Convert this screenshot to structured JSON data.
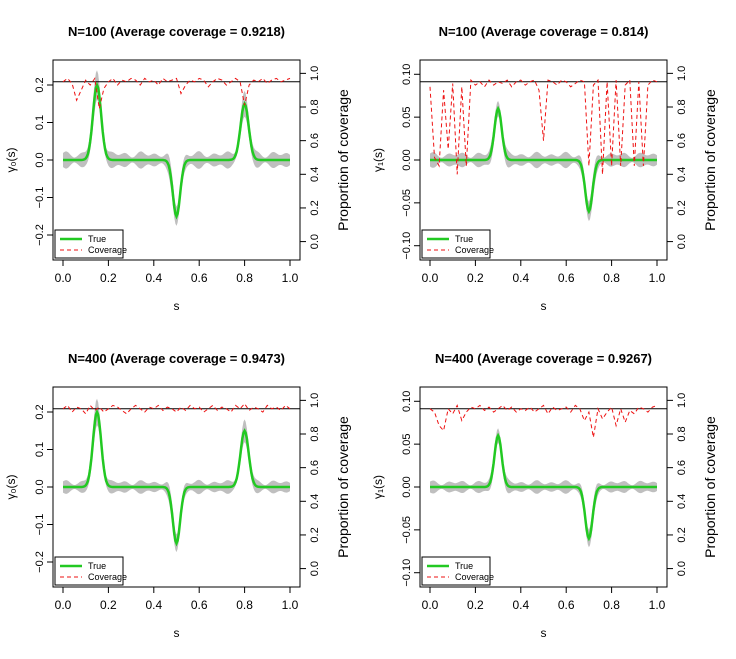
{
  "colors": {
    "true_line": "#22c922",
    "coverage_line": "#ee1111",
    "band": "#bfbfbf",
    "nominal_line": "#000000"
  },
  "chart_data": [
    {
      "type": "line",
      "title": "N=100 (Average coverage = 0.9218)",
      "xlabel": "s",
      "ylabel_left": "γ₀(s)",
      "ylabel_right": "Proportion of coverage",
      "xlim": [
        0,
        1
      ],
      "ylim_left": [
        -0.24,
        0.24
      ],
      "ylim_right": [
        -0.05,
        1.02
      ],
      "x_ticks": [
        "0.0",
        "0.2",
        "0.4",
        "0.6",
        "0.8",
        "1.0"
      ],
      "y_left_ticks": [
        "−0.2",
        "−0.1",
        "0.0",
        "0.1",
        "0.2"
      ],
      "y_right_ticks": [
        "0.0",
        "0.2",
        "0.4",
        "0.6",
        "0.8",
        "1.0"
      ],
      "legend_position": "bottom-left",
      "legend": [
        "True",
        "Coverage"
      ],
      "nominal_coverage": 0.95,
      "true_function": {
        "baseline": 0.0,
        "bumps": [
          {
            "center": 0.15,
            "height": 0.2,
            "width": 0.018
          },
          {
            "center": 0.5,
            "height": -0.15,
            "width": 0.016
          },
          {
            "center": 0.8,
            "height": 0.15,
            "width": 0.018
          }
        ]
      },
      "band_halfwidth": 0.015,
      "coverage": {
        "x": [
          0.0,
          0.02,
          0.04,
          0.06,
          0.08,
          0.1,
          0.12,
          0.14,
          0.16,
          0.18,
          0.2,
          0.22,
          0.24,
          0.26,
          0.28,
          0.3,
          0.32,
          0.34,
          0.36,
          0.38,
          0.4,
          0.42,
          0.44,
          0.46,
          0.48,
          0.5,
          0.52,
          0.54,
          0.56,
          0.58,
          0.6,
          0.62,
          0.64,
          0.66,
          0.68,
          0.7,
          0.72,
          0.74,
          0.76,
          0.78,
          0.8,
          0.82,
          0.84,
          0.86,
          0.88,
          0.9,
          0.92,
          0.94,
          0.96,
          0.98,
          1.0
        ],
        "y": [
          0.95,
          0.97,
          0.94,
          0.84,
          0.9,
          0.96,
          0.93,
          0.97,
          0.79,
          0.91,
          0.95,
          0.97,
          0.93,
          0.96,
          0.95,
          0.97,
          0.96,
          0.93,
          0.97,
          0.95,
          0.96,
          0.93,
          0.97,
          0.95,
          0.96,
          0.97,
          0.88,
          0.93,
          0.96,
          0.95,
          0.97,
          0.96,
          0.92,
          0.95,
          0.97,
          0.96,
          0.93,
          0.95,
          0.97,
          0.95,
          0.81,
          0.93,
          0.96,
          0.95,
          0.97,
          0.94,
          0.96,
          0.97,
          0.95,
          0.96,
          0.97
        ]
      }
    },
    {
      "type": "line",
      "title": "N=100 (Average coverage = 0.814)",
      "xlabel": "s",
      "ylabel_left": "γ₁(s)",
      "ylabel_right": "Proportion of coverage",
      "xlim": [
        0,
        1
      ],
      "ylim_left": [
        -0.105,
        0.105
      ],
      "ylim_right": [
        -0.05,
        1.02
      ],
      "x_ticks": [
        "0.0",
        "0.2",
        "0.4",
        "0.6",
        "0.8",
        "1.0"
      ],
      "y_left_ticks": [
        "−0.10",
        "−0.05",
        "0.00",
        "0.05",
        "0.10"
      ],
      "y_right_ticks": [
        "0.0",
        "0.2",
        "0.4",
        "0.6",
        "0.8",
        "1.0"
      ],
      "legend_position": "bottom-left",
      "legend": [
        "True",
        "Coverage"
      ],
      "nominal_coverage": 0.95,
      "true_function": {
        "baseline": 0.0,
        "bumps": [
          {
            "center": 0.3,
            "height": 0.06,
            "width": 0.016
          },
          {
            "center": 0.7,
            "height": -0.06,
            "width": 0.016
          }
        ]
      },
      "band_halfwidth": 0.006,
      "coverage": {
        "x": [
          0.0,
          0.02,
          0.04,
          0.06,
          0.08,
          0.1,
          0.12,
          0.14,
          0.16,
          0.18,
          0.2,
          0.22,
          0.24,
          0.26,
          0.28,
          0.3,
          0.32,
          0.34,
          0.36,
          0.38,
          0.4,
          0.42,
          0.44,
          0.46,
          0.48,
          0.5,
          0.52,
          0.54,
          0.56,
          0.58,
          0.6,
          0.62,
          0.64,
          0.66,
          0.68,
          0.7,
          0.72,
          0.74,
          0.76,
          0.78,
          0.8,
          0.82,
          0.84,
          0.86,
          0.88,
          0.9,
          0.92,
          0.94,
          0.96,
          0.98,
          1.0
        ],
        "y": [
          0.92,
          0.5,
          0.45,
          0.9,
          0.55,
          0.94,
          0.4,
          0.92,
          0.45,
          0.96,
          0.93,
          0.95,
          0.92,
          0.96,
          0.93,
          0.95,
          0.94,
          0.96,
          0.92,
          0.95,
          0.96,
          0.93,
          0.95,
          0.96,
          0.9,
          0.6,
          0.96,
          0.95,
          0.93,
          0.96,
          0.95,
          0.92,
          0.94,
          0.96,
          0.95,
          0.45,
          0.93,
          0.96,
          0.4,
          0.95,
          0.45,
          0.96,
          0.45,
          0.93,
          0.96,
          0.45,
          0.95,
          0.45,
          0.93,
          0.96,
          0.95
        ]
      }
    },
    {
      "type": "line",
      "title": "N=400 (Average coverage = 0.9473)",
      "xlabel": "s",
      "ylabel_left": "γ₀(s)",
      "ylabel_right": "Proportion of coverage",
      "xlim": [
        0,
        1
      ],
      "ylim_left": [
        -0.24,
        0.24
      ],
      "ylim_right": [
        -0.05,
        1.02
      ],
      "x_ticks": [
        "0.0",
        "0.2",
        "0.4",
        "0.6",
        "0.8",
        "1.0"
      ],
      "y_left_ticks": [
        "−0.2",
        "−0.1",
        "0.0",
        "0.1",
        "0.2"
      ],
      "y_right_ticks": [
        "0.0",
        "0.2",
        "0.4",
        "0.6",
        "0.8",
        "1.0"
      ],
      "legend_position": "bottom-left",
      "legend": [
        "True",
        "Coverage"
      ],
      "nominal_coverage": 0.95,
      "true_function": {
        "baseline": 0.0,
        "bumps": [
          {
            "center": 0.15,
            "height": 0.2,
            "width": 0.018
          },
          {
            "center": 0.5,
            "height": -0.15,
            "width": 0.016
          },
          {
            "center": 0.8,
            "height": 0.15,
            "width": 0.018
          }
        ]
      },
      "band_halfwidth": 0.012,
      "coverage": {
        "x": [
          0.0,
          0.02,
          0.04,
          0.06,
          0.08,
          0.1,
          0.12,
          0.14,
          0.16,
          0.18,
          0.2,
          0.22,
          0.24,
          0.26,
          0.28,
          0.3,
          0.32,
          0.34,
          0.36,
          0.38,
          0.4,
          0.42,
          0.44,
          0.46,
          0.48,
          0.5,
          0.52,
          0.54,
          0.56,
          0.58,
          0.6,
          0.62,
          0.64,
          0.66,
          0.68,
          0.7,
          0.72,
          0.74,
          0.76,
          0.78,
          0.8,
          0.82,
          0.84,
          0.86,
          0.88,
          0.9,
          0.92,
          0.94,
          0.96,
          0.98,
          1.0
        ],
        "y": [
          0.95,
          0.97,
          0.93,
          0.96,
          0.95,
          0.92,
          0.97,
          0.94,
          0.96,
          0.93,
          0.95,
          0.97,
          0.96,
          0.94,
          0.92,
          0.95,
          0.97,
          0.95,
          0.93,
          0.96,
          0.95,
          0.97,
          0.94,
          0.96,
          0.95,
          0.93,
          0.96,
          0.94,
          0.97,
          0.95,
          0.96,
          0.93,
          0.95,
          0.97,
          0.94,
          0.96,
          0.95,
          0.93,
          0.97,
          0.95,
          0.98,
          0.94,
          0.96,
          0.95,
          0.93,
          0.97,
          0.95,
          0.96,
          0.94,
          0.97,
          0.95
        ]
      }
    },
    {
      "type": "line",
      "title": "N=400 (Average coverage = 0.9267)",
      "xlabel": "s",
      "ylabel_left": "γ₁(s)",
      "ylabel_right": "Proportion of coverage",
      "xlim": [
        0,
        1
      ],
      "ylim_left": [
        -0.105,
        0.105
      ],
      "ylim_right": [
        -0.05,
        1.02
      ],
      "x_ticks": [
        "0.0",
        "0.2",
        "0.4",
        "0.6",
        "0.8",
        "1.0"
      ],
      "y_left_ticks": [
        "−0.10",
        "−0.05",
        "0.00",
        "0.05",
        "0.10"
      ],
      "y_right_ticks": [
        "0.0",
        "0.2",
        "0.4",
        "0.6",
        "0.8",
        "1.0"
      ],
      "legend_position": "bottom-left",
      "legend": [
        "True",
        "Coverage"
      ],
      "nominal_coverage": 0.95,
      "true_function": {
        "baseline": 0.0,
        "bumps": [
          {
            "center": 0.3,
            "height": 0.06,
            "width": 0.016
          },
          {
            "center": 0.7,
            "height": -0.06,
            "width": 0.016
          }
        ]
      },
      "band_halfwidth": 0.005,
      "coverage": {
        "x": [
          0.0,
          0.02,
          0.04,
          0.06,
          0.08,
          0.1,
          0.12,
          0.14,
          0.16,
          0.18,
          0.2,
          0.22,
          0.24,
          0.26,
          0.28,
          0.3,
          0.32,
          0.34,
          0.36,
          0.38,
          0.4,
          0.42,
          0.44,
          0.46,
          0.48,
          0.5,
          0.52,
          0.54,
          0.56,
          0.58,
          0.6,
          0.62,
          0.64,
          0.66,
          0.68,
          0.7,
          0.72,
          0.74,
          0.76,
          0.78,
          0.8,
          0.82,
          0.84,
          0.86,
          0.88,
          0.9,
          0.92,
          0.94,
          0.96,
          0.98,
          1.0
        ],
        "y": [
          0.95,
          0.93,
          0.85,
          0.82,
          0.95,
          0.92,
          0.97,
          0.88,
          0.93,
          0.96,
          0.95,
          0.97,
          0.94,
          0.96,
          0.93,
          0.95,
          0.97,
          0.94,
          0.96,
          0.93,
          0.95,
          0.94,
          0.96,
          0.93,
          0.95,
          0.97,
          0.92,
          0.96,
          0.94,
          0.95,
          0.96,
          0.93,
          0.97,
          0.95,
          0.88,
          0.93,
          0.78,
          0.95,
          0.89,
          0.93,
          0.96,
          0.85,
          0.95,
          0.87,
          0.94,
          0.92,
          0.96,
          0.95,
          0.93,
          0.96,
          0.97
        ]
      }
    }
  ]
}
